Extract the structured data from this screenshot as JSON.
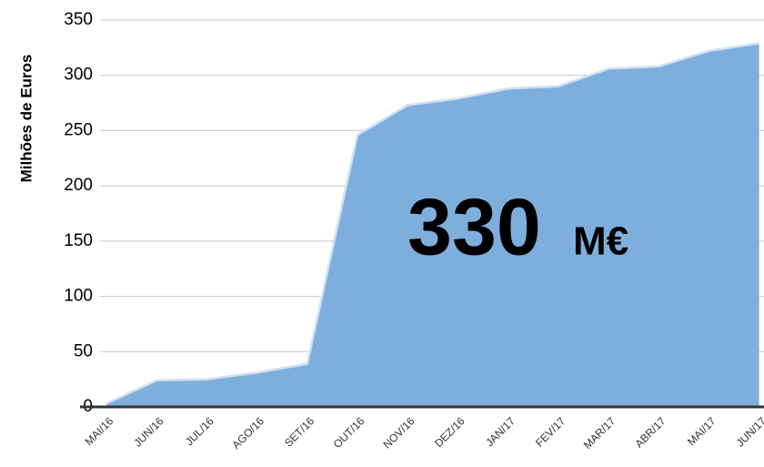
{
  "chart_data": {
    "type": "area",
    "y_label": "Milhões de Euros",
    "annotation": {
      "value": "330",
      "unit": "M€"
    },
    "categories": [
      "MAI/16",
      "JUN/16",
      "JUL/16",
      "AGO/16",
      "SET/16",
      "OUT/16",
      "NOV/16",
      "DEZ/16",
      "JAN/17",
      "FEV/17",
      "MAR/17",
      "ABR/17",
      "MAI/17",
      "JUN/17"
    ],
    "values": [
      3,
      24,
      25,
      31,
      39,
      246,
      273,
      279,
      288,
      290,
      306,
      308,
      322,
      329
    ],
    "color": "#7eaedc",
    "ylim": [
      0,
      350
    ],
    "yticks": [
      0,
      50,
      100,
      150,
      200,
      250,
      300,
      350
    ],
    "grid": true
  }
}
